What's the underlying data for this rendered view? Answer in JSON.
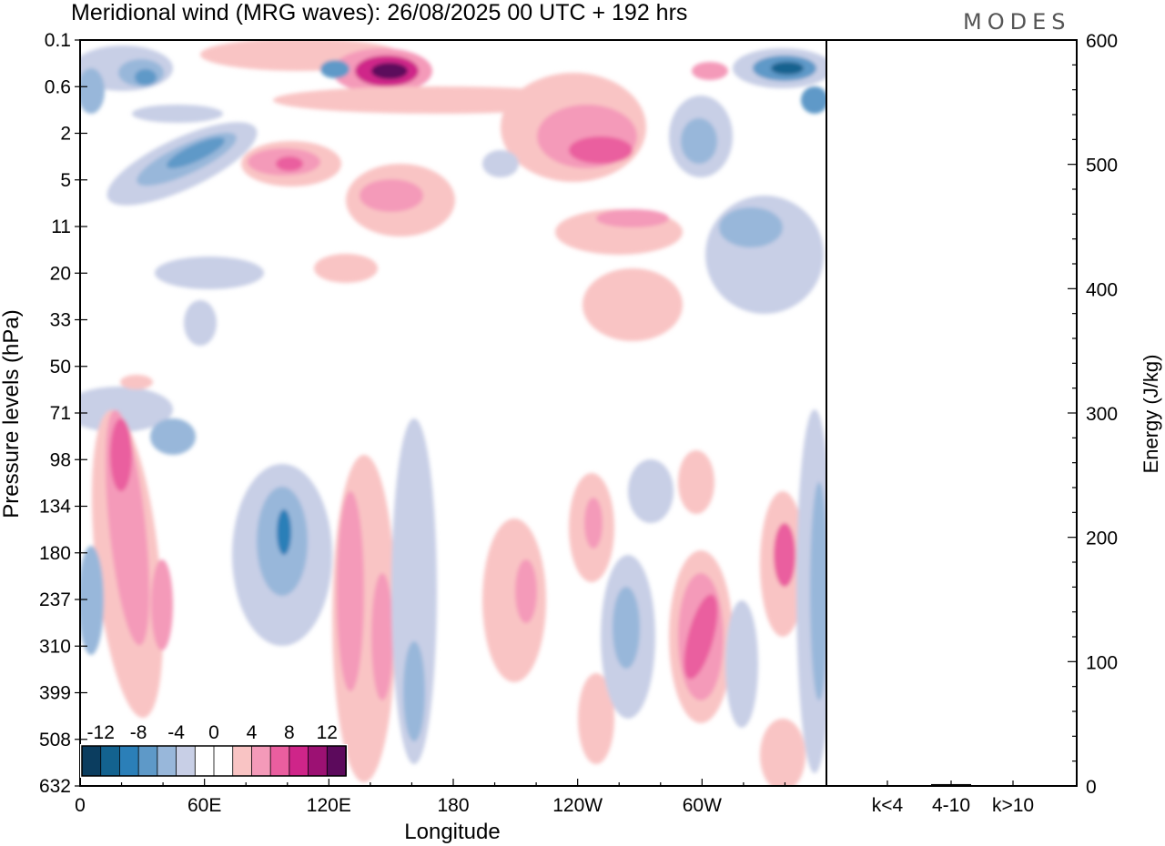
{
  "chart_data": {
    "type": "heatmap",
    "title": "Meridional wind (MRG waves):  26/08/2025  00 UTC  + 192 hrs",
    "brand": "MODES",
    "xlabel": "Longitude",
    "ylabel": "Pressure levels (hPa)",
    "x_ticks": [
      "0",
      "60E",
      "120E",
      "180",
      "120W",
      "60W"
    ],
    "y_ticks": [
      "0.1",
      "0.6",
      "2",
      "5",
      "11",
      "20",
      "33",
      "50",
      "71",
      "98",
      "134",
      "180",
      "237",
      "310",
      "399",
      "508",
      "632"
    ],
    "colorbar": {
      "ticks": [
        "-12",
        "-8",
        "-4",
        "0",
        "4",
        "8",
        "12"
      ],
      "colors": [
        "#0b3d5f",
        "#13628f",
        "#2b7fb8",
        "#5e99c8",
        "#98b7da",
        "#c8cfe6",
        "#ffffff",
        "#ffffff",
        "#f9c4c4",
        "#f49ab9",
        "#ea5e9f",
        "#cf2589",
        "#9c1173",
        "#5c0a5c"
      ]
    },
    "energy_panel": {
      "ylabel": "Energy (J/kg)",
      "y_ticks": [
        "0",
        "100",
        "200",
        "300",
        "400",
        "500",
        "600"
      ],
      "ylim": [
        0,
        600
      ],
      "categories": [
        "k<4",
        "4-10",
        "k>10"
      ],
      "values": [
        0.5,
        1.5,
        0.5
      ]
    }
  }
}
